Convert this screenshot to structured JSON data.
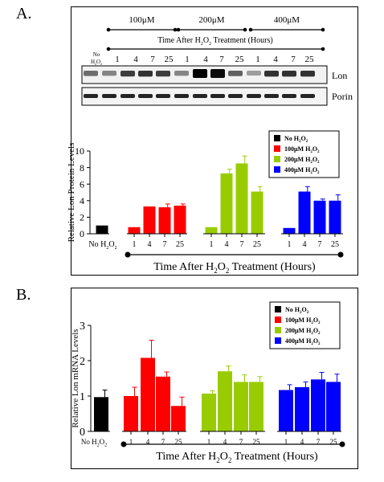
{
  "panels": {
    "a": {
      "letter": "A.",
      "concentrations": [
        "100μM",
        "200μM",
        "400μM"
      ],
      "time_header_pre": "Time After H",
      "time_header_sub": "2",
      "time_header_mid": "O",
      "time_header_sub2": "2",
      "time_header_post": " Treatment (Hours)",
      "blot_no_label_1": "No",
      "blot_no_label_2": "H",
      "blot_no_label_sub1": "2",
      "blot_no_label_mid": "O",
      "blot_no_label_sub2": "2",
      "blot_time_labels": [
        "1",
        "4",
        "7",
        "25",
        "1",
        "4",
        "7",
        "25",
        "1",
        "4",
        "7",
        "25"
      ],
      "blot_rows": [
        "Lon",
        "Porin"
      ]
    },
    "b": {
      "letter": "B."
    }
  },
  "chart_data": [
    {
      "type": "bar",
      "ylabel": "Relative Lon Protein Levels",
      "ylim": [
        0,
        10
      ],
      "yticks": [
        0,
        2,
        4,
        6,
        8,
        10
      ],
      "xlabel_pre": "Time After H",
      "xlabel_sub": "2",
      "xlabel_mid": "O",
      "xlabel_sub2": "2",
      "xlabel_post": " Treatment (Hours)",
      "no_label_pre": "No H",
      "no_label_sub": "2",
      "no_label_mid": "O",
      "no_label_sub2": "2",
      "legend": [
        {
          "pre": "No H",
          "sub": "2",
          "mid": "O",
          "sub2": "2",
          "color": "#000000"
        },
        {
          "pre": "100μM H",
          "sub": "2",
          "mid": "O",
          "sub2": "2",
          "color": "#ff0000"
        },
        {
          "pre": "200μM H",
          "sub": "2",
          "mid": "O",
          "sub2": "2",
          "color": "#99cc00"
        },
        {
          "pre": "400μM H",
          "sub": "2",
          "mid": "O",
          "sub2": "2",
          "color": "#0000ff"
        }
      ],
      "groups": [
        {
          "color": "#000000",
          "categories": [
            ""
          ],
          "values": [
            1.0
          ],
          "errors": [
            0
          ]
        },
        {
          "color": "#ff0000",
          "categories": [
            "1",
            "4",
            "7",
            "25"
          ],
          "values": [
            0.8,
            3.3,
            3.2,
            3.4
          ],
          "errors": [
            0,
            0,
            0.4,
            0.2
          ]
        },
        {
          "color": "#99cc00",
          "categories": [
            "1",
            "4",
            "7",
            "25"
          ],
          "values": [
            0.8,
            7.3,
            8.5,
            5.1
          ],
          "errors": [
            0,
            0.5,
            0.9,
            0.6
          ]
        },
        {
          "color": "#0000ff",
          "categories": [
            "1",
            "4",
            "7",
            "25"
          ],
          "values": [
            0.7,
            5.1,
            4.0,
            4.0
          ],
          "errors": [
            0,
            0.6,
            0.2,
            0.7
          ]
        }
      ]
    },
    {
      "type": "bar",
      "ylabel": "Relative Lon mRNA Levels",
      "ylim": [
        0,
        3
      ],
      "yticks": [
        0,
        1,
        2,
        3
      ],
      "xlabel_pre": "Time After H",
      "xlabel_sub": "2",
      "xlabel_mid": "O",
      "xlabel_sub2": "2",
      "xlabel_post": " Treatment (Hours)",
      "no_label_pre": "No H",
      "no_label_sub": "2",
      "no_label_mid": "O",
      "no_label_sub2": "2",
      "legend": [
        {
          "pre": "No H",
          "sub": "2",
          "mid": "O",
          "sub2": "2",
          "color": "#000000"
        },
        {
          "pre": "100μM H",
          "sub": "2",
          "mid": "O",
          "sub2": "2",
          "color": "#ff0000"
        },
        {
          "pre": "200μM H",
          "sub": "2",
          "mid": "O",
          "sub2": "2",
          "color": "#99cc00"
        },
        {
          "pre": "400μM H",
          "sub": "2",
          "mid": "O",
          "sub2": "2",
          "color": "#0000ff"
        }
      ],
      "groups": [
        {
          "color": "#000000",
          "categories": [
            ""
          ],
          "values": [
            0.97
          ],
          "errors": [
            0.2
          ]
        },
        {
          "color": "#ff0000",
          "categories": [
            "1",
            "4",
            "7",
            "25"
          ],
          "values": [
            1.0,
            2.08,
            1.55,
            0.72
          ],
          "errors": [
            0.25,
            0.5,
            0.13,
            0.25
          ]
        },
        {
          "color": "#99cc00",
          "categories": [
            "1",
            "4",
            "7",
            "25"
          ],
          "values": [
            1.07,
            1.7,
            1.4,
            1.4
          ],
          "errors": [
            0.08,
            0.15,
            0.2,
            0.15
          ]
        },
        {
          "color": "#0000ff",
          "categories": [
            "1",
            "4",
            "7",
            "25"
          ],
          "values": [
            1.17,
            1.25,
            1.47,
            1.4
          ],
          "errors": [
            0.15,
            0.15,
            0.2,
            0.22
          ]
        }
      ]
    }
  ]
}
